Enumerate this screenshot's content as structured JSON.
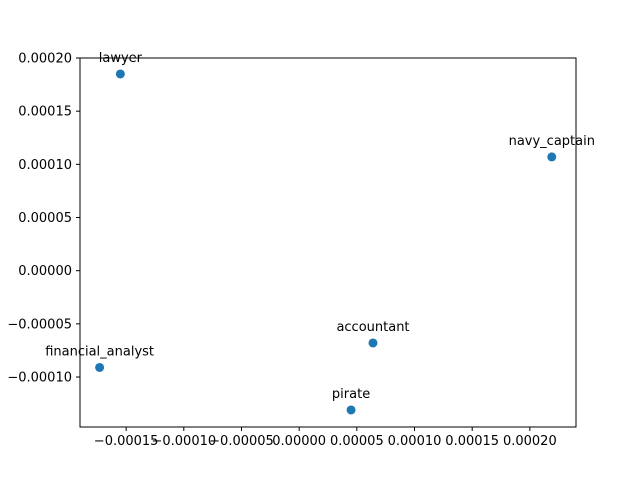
{
  "chart_data": {
    "type": "scatter",
    "title": "",
    "xlabel": "",
    "ylabel": "",
    "xlim": [
      -0.00019,
      0.00024
    ],
    "ylim": [
      -0.000147,
      0.0002
    ],
    "grid": false,
    "color": "#1f77b4",
    "xticks": [
      -0.00015,
      -0.0001,
      -5e-05,
      0.0,
      5e-05,
      0.0001,
      0.00015,
      0.0002
    ],
    "xtick_labels": [
      "−0.00015",
      "−0.00010",
      "−0.00005",
      "0.00000",
      "0.00005",
      "0.00010",
      "0.00015",
      "0.00020"
    ],
    "yticks": [
      -0.0001,
      -5e-05,
      0.0,
      5e-05,
      0.0001,
      0.00015,
      0.0002
    ],
    "ytick_labels": [
      "−0.00010",
      "−0.00005",
      "0.00000",
      "0.00005",
      "0.00010",
      "0.00015",
      "0.00020"
    ],
    "points": [
      {
        "label": "lawyer",
        "x": -0.000155,
        "y": 0.000185
      },
      {
        "label": "navy_captain",
        "x": 0.000219,
        "y": 0.000107
      },
      {
        "label": "accountant",
        "x": 6.4e-05,
        "y": -6.8e-05
      },
      {
        "label": "financial_analyst",
        "x": -0.000173,
        "y": -9.1e-05
      },
      {
        "label": "pirate",
        "x": 4.5e-05,
        "y": -0.000131
      }
    ]
  }
}
